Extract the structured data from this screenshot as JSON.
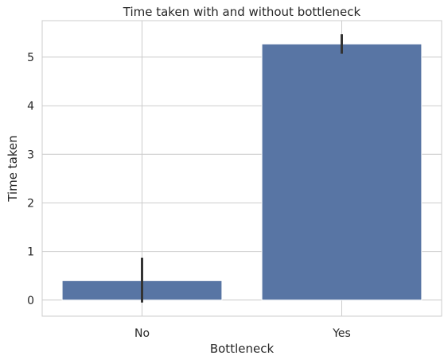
{
  "chart_data": {
    "type": "bar",
    "title": "Time taken with and without bottleneck",
    "xlabel": "Bottleneck",
    "ylabel": "Time taken",
    "categories": [
      "No",
      "Yes"
    ],
    "values": [
      0.4,
      5.27
    ],
    "error_bars": [
      {
        "low": -0.05,
        "high": 0.87
      },
      {
        "low": 5.07,
        "high": 5.47
      }
    ],
    "ylim": [
      -0.33,
      5.75
    ],
    "yticks": [
      0,
      1,
      2,
      3,
      4,
      5
    ],
    "ytick_labels": [
      "0",
      "1",
      "2",
      "3",
      "4",
      "5"
    ],
    "grid": true,
    "colors": {
      "bar": "#5875a4",
      "error_bar": "#333333",
      "grid": "#cccccc",
      "spine": "#cccccc",
      "text": "#262626"
    }
  }
}
